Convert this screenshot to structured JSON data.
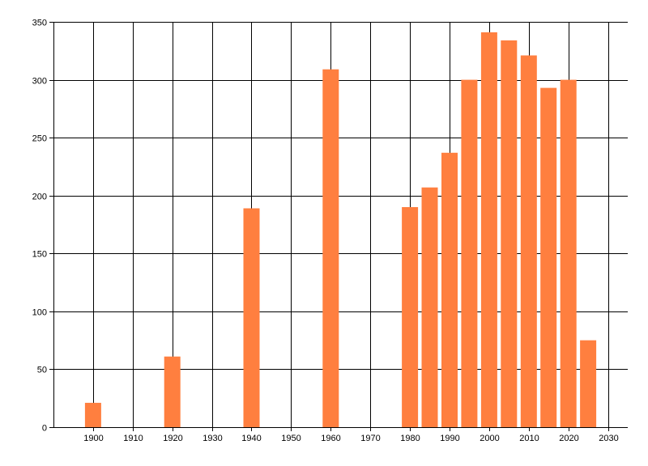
{
  "chart_data": {
    "type": "bar",
    "title": "",
    "xlabel": "",
    "ylabel": "",
    "x": [
      1900,
      1920,
      1940,
      1960,
      1980,
      1985,
      1990,
      1995,
      2000,
      2005,
      2010,
      2015,
      2020,
      2025
    ],
    "values": [
      21,
      61,
      189,
      309,
      190,
      207,
      237,
      300,
      341,
      334,
      321,
      293,
      300,
      75
    ],
    "xlim": [
      1890,
      2035
    ],
    "ylim": [
      0,
      350
    ],
    "xticks": [
      1900,
      1910,
      1920,
      1930,
      1940,
      1950,
      1960,
      1970,
      1980,
      1990,
      2000,
      2010,
      2020,
      2030
    ],
    "yticks": [
      0,
      50,
      100,
      150,
      200,
      250,
      300,
      350
    ],
    "grid": true,
    "legend": "none",
    "bar_color": "#FF7F3F"
  }
}
